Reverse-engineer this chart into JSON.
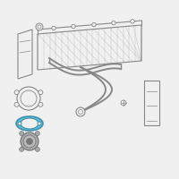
{
  "bg_color": "#f0f0f0",
  "outline_color": "#888888",
  "blue_gasket_color": "#5bbdd4",
  "blue_gasket_outline": "#3a8fa8",
  "dark_gray": "#777777",
  "light_gray": "#aaaaaa",
  "grid_color": "#aaaaaa",
  "white": "#f0f0f0"
}
